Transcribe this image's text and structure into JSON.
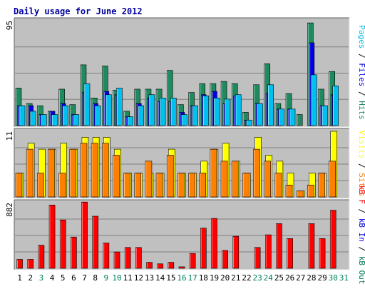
{
  "title": "Daily usage for June 2012",
  "colors": {
    "page_bg": "#ffffff",
    "panel_bg": "#c0c0c0",
    "grid": "#808080",
    "title": "#0000a0",
    "pages": "#1e8a5e",
    "files": "#0000e8",
    "hits": "#00c0f0",
    "visits": "#ffff00",
    "sites": "#ff8000",
    "kbf": "#ff0000",
    "kbin": "#0000e8",
    "kbout": "#008060",
    "weekend_day": "#008060",
    "week_day": "#000000"
  },
  "chart_data": {
    "type": "bar",
    "x": [
      "1",
      "2",
      "3",
      "4",
      "5",
      "6",
      "7",
      "8",
      "9",
      "10",
      "11",
      "12",
      "13",
      "14",
      "15",
      "16",
      "17",
      "18",
      "19",
      "20",
      "21",
      "22",
      "23",
      "24",
      "25",
      "26",
      "27",
      "28",
      "29",
      "30",
      "31"
    ],
    "weekend_days": [
      3,
      9,
      10,
      16,
      17,
      23,
      24,
      30,
      31
    ],
    "panels": [
      {
        "id": "hits",
        "scale_label": "95",
        "ymax": 95,
        "legend": [
          {
            "text": "Pages",
            "color": "#00c0f0"
          },
          {
            "text": " / ",
            "color": "#000000"
          },
          {
            "text": "Files",
            "color": "#0000e8"
          },
          {
            "text": " / ",
            "color": "#000000"
          },
          {
            "text": "Hits",
            "color": "#1e8a5e"
          }
        ],
        "series": [
          {
            "name": "Hits",
            "color": "#1e8a5e",
            "values": [
              34,
              20,
              18,
              13,
              33,
              19,
              55,
              25,
              54,
              32,
              13,
              33,
              33,
              33,
              50,
              19,
              30,
              38,
              38,
              40,
              38,
              12,
              37,
              56,
              20,
              29,
              10,
              93,
              33,
              49,
              0
            ]
          },
          {
            "name": "Files",
            "color": "#0000e8",
            "values": [
              18,
              18,
              10,
              13,
              20,
              10,
              30,
              20,
              31,
              28,
              8,
              20,
              25,
              22,
              22,
              12,
              18,
              28,
              31,
              20,
              27,
              5,
              20,
              29,
              15,
              15,
              0,
              75,
              18,
              28,
              0
            ]
          },
          {
            "name": "Pages",
            "color": "#00c0f0",
            "values": [
              18,
              13,
              10,
              10,
              18,
              10,
              38,
              18,
              28,
              34,
              8,
              18,
              28,
              25,
              25,
              10,
              18,
              27,
              25,
              24,
              28,
              5,
              20,
              37,
              15,
              15,
              0,
              46,
              18,
              36,
              0
            ]
          }
        ]
      },
      {
        "id": "visits",
        "scale_label": "11",
        "ymax": 11,
        "legend": [
          {
            "text": "Visits",
            "color": "#ffff00"
          },
          {
            "text": " / ",
            "color": "#000000"
          },
          {
            "text": "Sites",
            "color": "#ff8000"
          }
        ],
        "series": [
          {
            "name": "Visits",
            "color": "#ffff00",
            "values": [
              4,
              9,
              8,
              8,
              9,
              8,
              10,
              10,
              10,
              8,
              4,
              4,
              4,
              4,
              8,
              4,
              4,
              6,
              8,
              9,
              6,
              4,
              10,
              7,
              6,
              4,
              1,
              4,
              4,
              11,
              0
            ]
          },
          {
            "name": "Sites",
            "color": "#ff8000",
            "values": [
              4,
              8,
              4,
              8,
              4,
              8,
              9,
              9,
              9,
              7,
              4,
              4,
              6,
              4,
              7,
              4,
              4,
              4,
              8,
              6,
              6,
              4,
              8,
              6,
              4,
              2,
              1,
              2,
              4,
              6,
              0
            ]
          }
        ]
      },
      {
        "id": "kbytes",
        "scale_label": "882",
        "ymax": 882,
        "legend": [
          {
            "text": "kB F",
            "color": "#ff0000"
          },
          {
            "text": " / ",
            "color": "#000000"
          },
          {
            "text": "kB In",
            "color": "#0000e8"
          },
          {
            "text": " / ",
            "color": "#000000"
          },
          {
            "text": "kB Out",
            "color": "#008060"
          }
        ],
        "series": [
          {
            "name": "kB F",
            "color": "#ff0000",
            "values": [
              120,
              120,
              310,
              850,
              650,
              420,
              890,
              700,
              340,
              220,
              280,
              280,
              80,
              60,
              80,
              20,
              200,
              540,
              670,
              240,
              430,
              0,
              280,
              450,
              600,
              400,
              0,
              600,
              400,
              780,
              0
            ]
          }
        ]
      }
    ]
  }
}
